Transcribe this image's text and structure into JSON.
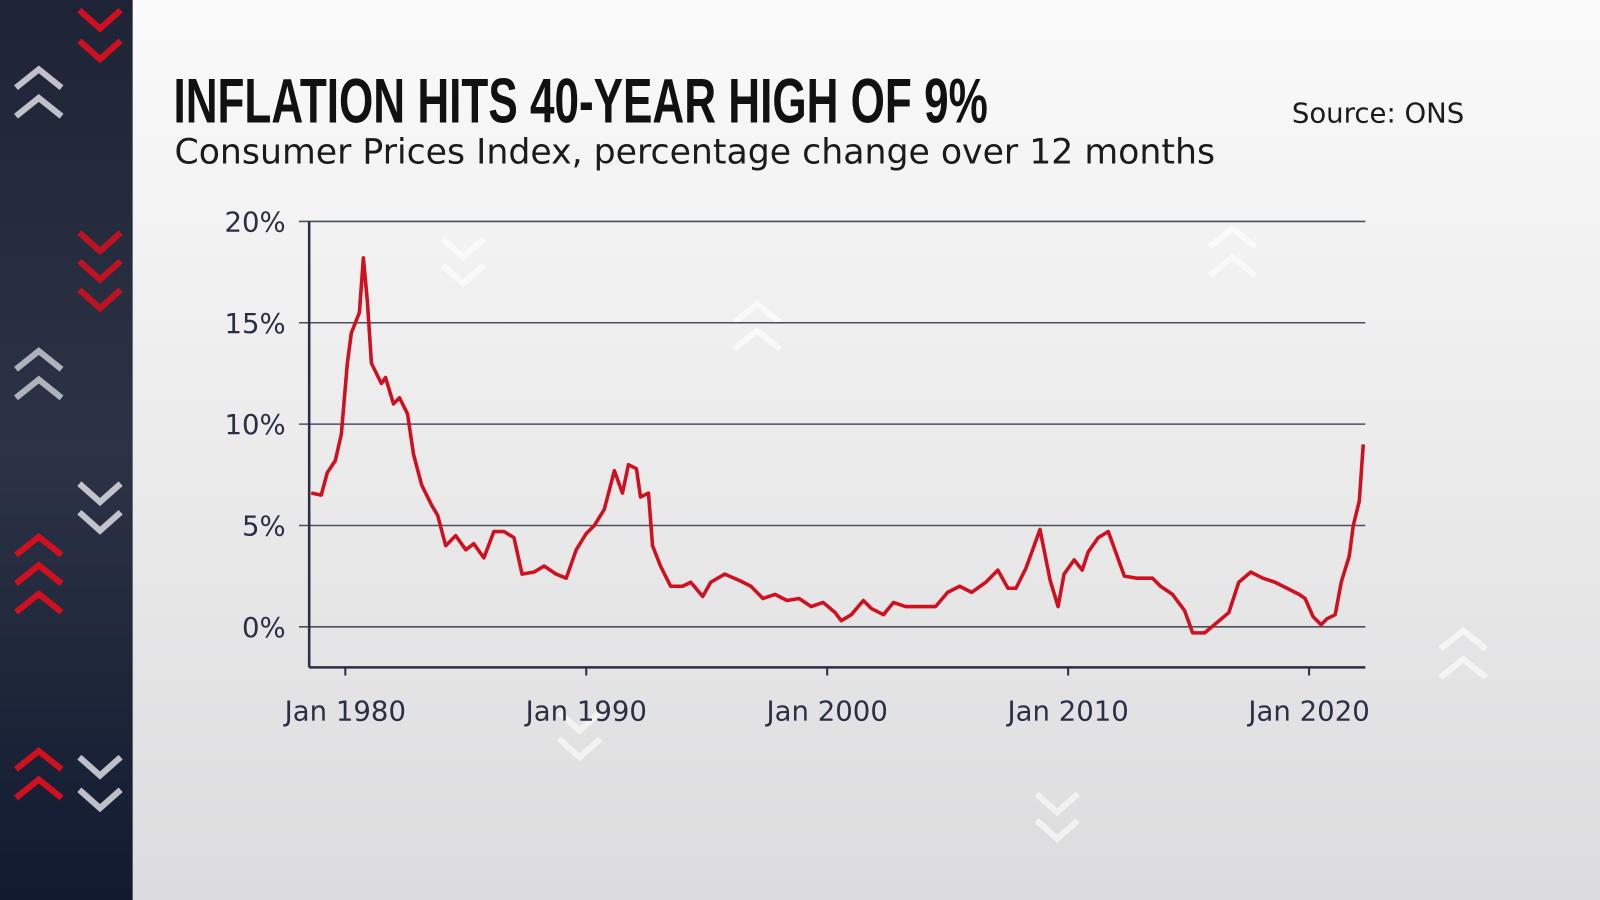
{
  "source": "Source: ONS",
  "chart_data": {
    "type": "line",
    "title": "INFLATION HITS 40-YEAR HIGH OF 9%",
    "subtitle": "Consumer Prices Index, percentage change over 12 months",
    "color": "#d0101e",
    "grid": true,
    "x": [
      "1978-08",
      "1979-01",
      "1979-04",
      "1979-08",
      "1979-11",
      "1980-02",
      "1980-04",
      "1980-08",
      "1980-10",
      "1980-12",
      "1981-02",
      "1981-07",
      "1981-09",
      "1982-01",
      "1982-04",
      "1982-08",
      "1982-11",
      "1983-03",
      "1983-08",
      "1983-11",
      "1984-03",
      "1984-08",
      "1985-01",
      "1985-05",
      "1985-10",
      "1986-03",
      "1986-08",
      "1987-01",
      "1987-05",
      "1987-11",
      "1988-04",
      "1988-10",
      "1989-03",
      "1989-08",
      "1990-01",
      "1990-05",
      "1990-10",
      "1991-03",
      "1991-07",
      "1991-10",
      "1992-02",
      "1992-04",
      "1992-08",
      "1992-10",
      "1993-02",
      "1993-07",
      "1994-01",
      "1994-05",
      "1994-11",
      "1995-03",
      "1995-10",
      "1996-05",
      "1996-11",
      "1997-05",
      "1997-11",
      "1998-05",
      "1998-11",
      "1999-05",
      "1999-11",
      "2000-05",
      "2000-08",
      "2001-01",
      "2001-07",
      "2001-11",
      "2002-05",
      "2002-10",
      "2003-04",
      "2003-11",
      "2004-07",
      "2005-01",
      "2005-07",
      "2006-01",
      "2006-08",
      "2007-02",
      "2007-07",
      "2007-11",
      "2008-04",
      "2008-11",
      "2009-04",
      "2009-08",
      "2009-11",
      "2010-04",
      "2010-08",
      "2010-11",
      "2011-04",
      "2011-09",
      "2012-01",
      "2012-05",
      "2012-11",
      "2013-07",
      "2013-11",
      "2014-05",
      "2014-11",
      "2015-03",
      "2015-09",
      "2016-03",
      "2016-09",
      "2017-02",
      "2017-08",
      "2018-02",
      "2018-08",
      "2019-02",
      "2019-08",
      "2019-11",
      "2020-03",
      "2020-07",
      "2020-10",
      "2021-02",
      "2021-05",
      "2021-09",
      "2021-11",
      "2022-02",
      "2022-04"
    ],
    "values": [
      6.6,
      6.5,
      7.6,
      8.2,
      9.5,
      13.0,
      14.5,
      15.5,
      18.2,
      16.0,
      13.0,
      12.0,
      12.3,
      11.0,
      11.3,
      10.5,
      8.5,
      7.0,
      6.0,
      5.5,
      4.0,
      4.5,
      3.8,
      4.1,
      3.4,
      4.7,
      4.7,
      4.4,
      2.6,
      2.7,
      3.0,
      2.6,
      2.4,
      3.8,
      4.6,
      5.0,
      5.8,
      7.7,
      6.6,
      8.0,
      7.8,
      6.4,
      6.6,
      4.0,
      3.0,
      2.0,
      2.0,
      2.2,
      1.5,
      2.2,
      2.6,
      2.3,
      2.0,
      1.4,
      1.6,
      1.3,
      1.4,
      1.0,
      1.2,
      0.7,
      0.3,
      0.6,
      1.3,
      0.9,
      0.6,
      1.2,
      1.0,
      1.0,
      1.0,
      1.7,
      2.0,
      1.7,
      2.2,
      2.8,
      1.9,
      1.9,
      2.9,
      4.8,
      2.3,
      1.0,
      2.6,
      3.3,
      2.8,
      3.7,
      4.4,
      4.7,
      3.6,
      2.5,
      2.4,
      2.4,
      2.0,
      1.6,
      0.8,
      -0.3,
      -0.3,
      0.2,
      0.7,
      2.2,
      2.7,
      2.4,
      2.2,
      1.9,
      1.6,
      1.4,
      0.5,
      0.1,
      0.4,
      0.6,
      2.2,
      3.5,
      5.0,
      6.2,
      9.0
    ],
    "xlim": [
      "1978-07",
      "2022-05"
    ],
    "xticks": [
      {
        "value": "1980-01",
        "label": "Jan 1980"
      },
      {
        "value": "1990-01",
        "label": "Jan 1990"
      },
      {
        "value": "2000-01",
        "label": "Jan 2000"
      },
      {
        "value": "2010-01",
        "label": "Jan 2010"
      },
      {
        "value": "2020-01",
        "label": "Jan 2020"
      }
    ],
    "ylim": [
      -2,
      20
    ],
    "yticks": [
      {
        "value": 0,
        "label": "0%"
      },
      {
        "value": 5,
        "label": "5%"
      },
      {
        "value": 10,
        "label": "10%"
      },
      {
        "value": 15,
        "label": "15%"
      },
      {
        "value": 20,
        "label": "20%"
      }
    ]
  }
}
